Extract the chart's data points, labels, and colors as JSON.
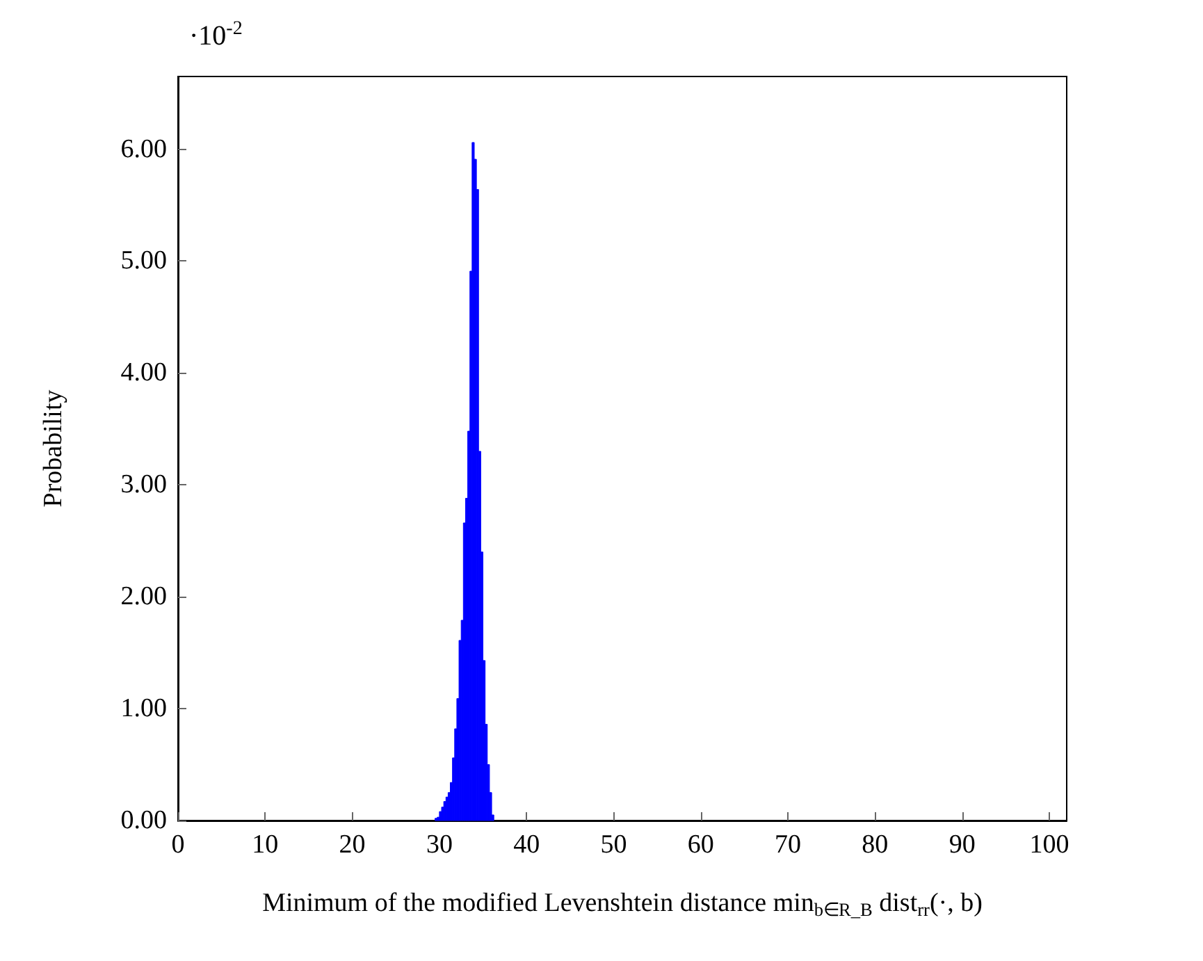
{
  "chart_data": {
    "type": "histogram",
    "xlabel": "Minimum of the modified Levenshtein distance min$_{b∈R_B}$ dist$_{rr}$(·, b)",
    "ylabel": "Probability",
    "annotations": [
      "·10$^{-2}$"
    ],
    "color": "#0000ff",
    "bins": [
      29.5,
      29.75,
      30,
      30.25,
      30.5,
      30.75,
      31,
      31.25,
      31.5,
      31.75,
      32,
      32.25,
      32.5,
      32.75,
      33,
      33.25,
      33.5,
      33.75,
      34,
      34.25,
      34.5,
      34.75,
      35,
      35.25,
      35.5,
      35.75,
      36,
      36.25
    ],
    "values": [
      0.02,
      0.03,
      0.08,
      0.12,
      0.17,
      0.21,
      0.25,
      0.34,
      0.56,
      0.82,
      1.09,
      1.61,
      1.79,
      2.66,
      2.88,
      3.48,
      4.91,
      6.06,
      5.91,
      5.64,
      3.3,
      2.4,
      1.43,
      0.86,
      0.5,
      0.25,
      0.05
    ],
    "xlim": [
      0,
      102
    ],
    "xticks": [
      0,
      10,
      20,
      30,
      40,
      50,
      60,
      70,
      80,
      90,
      100
    ],
    "ylim": [
      0,
      6.65
    ],
    "yticks": [
      {
        "value": 0,
        "label": "0.00"
      },
      {
        "value": 1,
        "label": "1.00"
      },
      {
        "value": 2,
        "label": "2.00"
      },
      {
        "value": 3,
        "label": "3.00"
      },
      {
        "value": 4,
        "label": "4.00"
      },
      {
        "value": 5,
        "label": "5.00"
      },
      {
        "value": 6,
        "label": "6.00"
      }
    ],
    "grid": false
  }
}
